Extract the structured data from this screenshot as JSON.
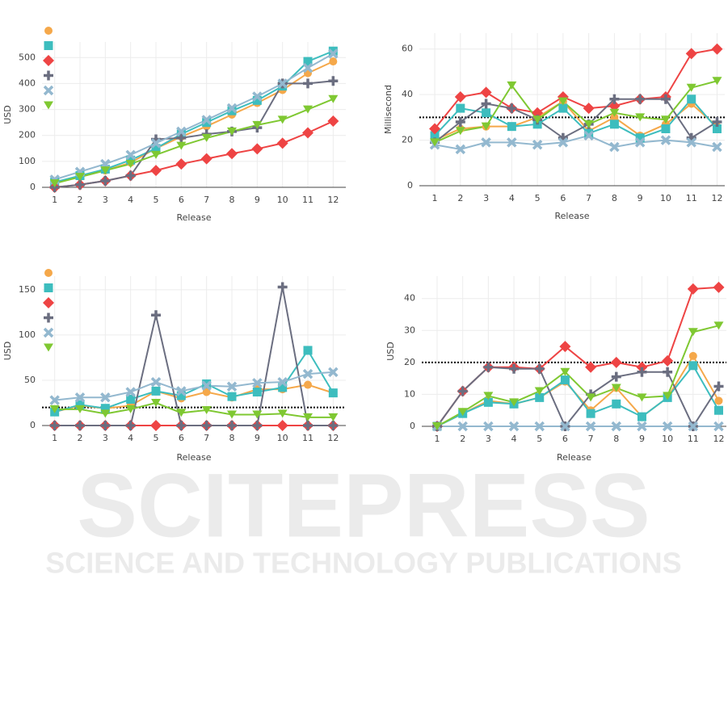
{
  "chart_data": [
    {
      "type": "line",
      "x_label": "Release",
      "y_label": "USD",
      "grid": true,
      "legend": "top-left",
      "x": [
        1,
        2,
        3,
        4,
        5,
        6,
        7,
        8,
        9,
        10,
        11,
        12
      ],
      "xlim": [
        0.5,
        12.5
      ],
      "xticks": [
        1,
        2,
        3,
        4,
        5,
        6,
        7,
        8,
        9,
        10,
        11,
        12
      ],
      "ylim": [
        0,
        560
      ],
      "yticks": [
        0,
        100,
        200,
        300,
        400,
        500
      ],
      "series": [
        {
          "color": "#f5a84a",
          "marker": "circle",
          "values": [
            20,
            40,
            65,
            95,
            150,
            195,
            235,
            280,
            325,
            375,
            440,
            485
          ]
        },
        {
          "color": "#3dbdbe",
          "marker": "square",
          "values": [
            20,
            45,
            70,
            105,
            150,
            205,
            250,
            295,
            335,
            390,
            485,
            525
          ]
        },
        {
          "color": "#ee4444",
          "marker": "diamond",
          "values": [
            0,
            10,
            25,
            45,
            65,
            90,
            110,
            130,
            148,
            170,
            210,
            255
          ]
        },
        {
          "color": "#6b6e80",
          "marker": "plus",
          "values": [
            0,
            10,
            25,
            45,
            185,
            190,
            205,
            215,
            230,
            400,
            400,
            410
          ]
        },
        {
          "color": "#93b8cf",
          "marker": "x",
          "values": [
            30,
            60,
            90,
            125,
            170,
            215,
            260,
            305,
            350,
            400,
            460,
            515
          ]
        },
        {
          "color": "#7fc832",
          "marker": "triangle-down",
          "values": [
            15,
            40,
            65,
            90,
            125,
            160,
            190,
            215,
            240,
            260,
            300,
            340
          ]
        }
      ]
    },
    {
      "type": "line",
      "x_label": "Release",
      "y_label": "Millisecond",
      "grid": true,
      "hline": 30,
      "x": [
        1,
        2,
        3,
        4,
        5,
        6,
        7,
        8,
        9,
        10,
        11,
        12
      ],
      "xlim": [
        0.4,
        12.3
      ],
      "xticks": [
        1,
        2,
        3,
        4,
        5,
        6,
        7,
        8,
        9,
        10,
        11,
        12
      ],
      "ylim": [
        0,
        67
      ],
      "yticks": [
        0,
        20,
        40,
        60
      ],
      "series": [
        {
          "color": "#f5a84a",
          "marker": "circle",
          "values": [
            20,
            25,
            26,
            26,
            30,
            37,
            24,
            30,
            22,
            27,
            36,
            26
          ]
        },
        {
          "color": "#3dbdbe",
          "marker": "square",
          "values": [
            22,
            34,
            32,
            26,
            27,
            34,
            23,
            27,
            21,
            25,
            38,
            25
          ]
        },
        {
          "color": "#ee4444",
          "marker": "diamond",
          "values": [
            25,
            39,
            41,
            34,
            32,
            39,
            34,
            35,
            38,
            39,
            58,
            60
          ]
        },
        {
          "color": "#6b6e80",
          "marker": "plus",
          "values": [
            19,
            28,
            36,
            34,
            29,
            21,
            27,
            38,
            38,
            38,
            21,
            28
          ]
        },
        {
          "color": "#93b8cf",
          "marker": "x",
          "values": [
            18,
            16,
            19,
            19,
            18,
            19,
            22,
            17,
            19,
            20,
            19,
            17
          ]
        },
        {
          "color": "#7fc832",
          "marker": "triangle-down",
          "values": [
            19,
            24,
            26,
            44,
            29,
            37,
            27,
            32,
            30,
            29,
            43,
            46
          ]
        }
      ]
    },
    {
      "type": "line",
      "x_label": "Release",
      "y_label": "USD",
      "grid": true,
      "legend": "top-left",
      "hline": 20,
      "x": [
        1,
        2,
        3,
        4,
        5,
        6,
        7,
        8,
        9,
        10,
        11,
        12
      ],
      "xlim": [
        0.5,
        12.5
      ],
      "xticks": [
        1,
        2,
        3,
        4,
        5,
        6,
        7,
        8,
        9,
        10,
        11,
        12
      ],
      "ylim": [
        0,
        165
      ],
      "yticks": [
        0,
        50,
        100,
        150
      ],
      "series": [
        {
          "color": "#f5a84a",
          "marker": "circle",
          "values": [
            15,
            22,
            19,
            22,
            38,
            30,
            37,
            31,
            40,
            40,
            45,
            36
          ]
        },
        {
          "color": "#3dbdbe",
          "marker": "square",
          "values": [
            15,
            23,
            19,
            29,
            38,
            33,
            46,
            32,
            37,
            42,
            83,
            36
          ]
        },
        {
          "color": "#ee4444",
          "marker": "diamond",
          "values": [
            0,
            0,
            0,
            0,
            0,
            0,
            0,
            0,
            0,
            0,
            0,
            0
          ]
        },
        {
          "color": "#6b6e80",
          "marker": "plus",
          "values": [
            0,
            0,
            0,
            0,
            122,
            0,
            0,
            0,
            0,
            153,
            0,
            0
          ]
        },
        {
          "color": "#93b8cf",
          "marker": "x",
          "values": [
            28,
            31,
            31,
            37,
            48,
            38,
            44,
            43,
            47,
            48,
            57,
            59
          ]
        },
        {
          "color": "#7fc832",
          "marker": "triangle-down",
          "values": [
            18,
            18,
            13,
            18,
            25,
            14,
            17,
            12,
            12,
            13,
            9,
            9
          ]
        }
      ]
    },
    {
      "type": "line",
      "x_label": "Release",
      "y_label": "USD",
      "grid": true,
      "hline": 20,
      "x": [
        1,
        2,
        3,
        4,
        5,
        6,
        7,
        8,
        9,
        10,
        11,
        12
      ],
      "xlim": [
        0.4,
        12.3
      ],
      "xticks": [
        1,
        2,
        3,
        4,
        5,
        6,
        7,
        8,
        9,
        10,
        11,
        12
      ],
      "ylim": [
        0,
        47
      ],
      "yticks": [
        0,
        10,
        20,
        30,
        40
      ],
      "series": [
        {
          "color": "#f5a84a",
          "marker": "circle",
          "values": [
            0,
            4,
            8,
            7,
            9,
            14,
            5,
            12,
            3,
            9,
            22,
            8
          ]
        },
        {
          "color": "#3dbdbe",
          "marker": "square",
          "values": [
            0,
            4,
            7.5,
            7,
            9,
            14.5,
            4,
            7,
            3,
            9,
            19,
            5
          ]
        },
        {
          "color": "#ee4444",
          "marker": "diamond",
          "values": [
            0,
            11,
            18.5,
            18.5,
            18,
            25,
            18.5,
            20,
            18.5,
            20.5,
            43,
            43.5
          ]
        },
        {
          "color": "#6b6e80",
          "marker": "plus",
          "values": [
            0,
            11,
            18.5,
            18,
            18,
            0,
            10,
            15.5,
            17,
            17,
            0,
            12.5
          ]
        },
        {
          "color": "#93b8cf",
          "marker": "x",
          "values": [
            0,
            0,
            0,
            0,
            0,
            0,
            0,
            0,
            0,
            0,
            0,
            0
          ]
        },
        {
          "color": "#7fc832",
          "marker": "triangle-down",
          "values": [
            0,
            4.5,
            9.5,
            7.5,
            11,
            17,
            9,
            12,
            9,
            9.5,
            29.5,
            31.5
          ]
        }
      ]
    }
  ],
  "watermark": {
    "text": "SCITEPRESS",
    "subtitle": "SCIENCE AND TECHNOLOGY PUBLICATIONS"
  }
}
